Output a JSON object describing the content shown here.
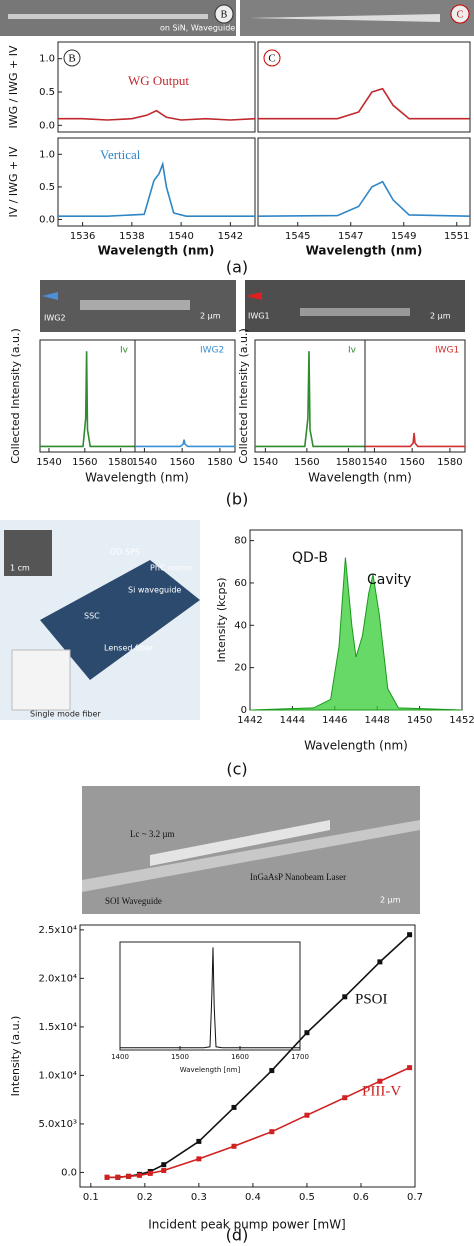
{
  "figure": {
    "panel_labels": [
      "(a)",
      "(b)",
      "(c)",
      "(d)"
    ],
    "sem_a": {
      "caption": "on SiN, Waveguide",
      "labels": [
        "B",
        "C"
      ]
    },
    "sem_b": {
      "arrows": [
        "IWG2",
        "IWG1"
      ],
      "scales": [
        "2 µm",
        "2 µm"
      ]
    },
    "illustration_c": {
      "labels": [
        "QD SPS",
        "PhC mirror",
        "Si waveguide",
        "SSC",
        "Lensed fiber",
        "Single mode fiber",
        "1 cm"
      ]
    },
    "sem_d": {
      "labels": [
        "Lc ~ 3.2 µm",
        "InGaAsP Nanobeam Laser",
        "SOI Waveguide",
        "2 µm"
      ]
    }
  },
  "chart_data": [
    {
      "type": "line",
      "corner_label": "B",
      "annotations": [
        "WG Output"
      ],
      "ylabel": "IWG / IWG + IV",
      "xlim": [
        1535,
        1543
      ],
      "ylim": [
        -0.1,
        1.25
      ],
      "yticks": [
        {
          "value": 0,
          "label": "0.0"
        },
        {
          "value": 0.5,
          "label": "0.5"
        },
        {
          "value": 1,
          "label": "1.0"
        }
      ],
      "x": [
        1535,
        1536,
        1537,
        1538,
        1538.6,
        1539,
        1539.4,
        1540,
        1541,
        1542,
        1543
      ],
      "series": [
        {
          "color": "#c0282d",
          "values": [
            0.1,
            0.1,
            0.08,
            0.1,
            0.15,
            0.22,
            0.12,
            0.08,
            0.1,
            0.08,
            0.1
          ]
        }
      ]
    },
    {
      "type": "line",
      "corner_label": "C",
      "xlim": [
        1543.5,
        1551.5
      ],
      "ylim": [
        -0.1,
        1.25
      ],
      "x": [
        1543.5,
        1545,
        1546.5,
        1547.3,
        1547.8,
        1548.2,
        1548.6,
        1549.2,
        1550,
        1551.5
      ],
      "series": [
        {
          "color": "#c0282d",
          "values": [
            0.1,
            0.1,
            0.1,
            0.2,
            0.5,
            0.55,
            0.3,
            0.1,
            0.1,
            0.1
          ]
        }
      ]
    },
    {
      "type": "line",
      "annotations": [
        "Vertical"
      ],
      "ylabel": "IV / IWG + IV",
      "xlabel": "Wavelength (nm)",
      "xlim": [
        1535,
        1543
      ],
      "ylim": [
        -0.1,
        1.25
      ],
      "xticks": [
        1536,
        1538,
        1540,
        1542
      ],
      "yticks": [
        {
          "value": 0,
          "label": "0.0"
        },
        {
          "value": 0.5,
          "label": "0.5"
        },
        {
          "value": 1,
          "label": "1.0"
        }
      ],
      "x": [
        1535,
        1537,
        1538.5,
        1538.9,
        1539.1,
        1539.25,
        1539.4,
        1539.7,
        1540.2,
        1543
      ],
      "series": [
        {
          "color": "#2f86c6",
          "values": [
            0.05,
            0.05,
            0.08,
            0.6,
            0.7,
            0.85,
            0.5,
            0.1,
            0.05,
            0.05
          ]
        }
      ]
    },
    {
      "type": "line",
      "xlabel": "Wavelength (nm)",
      "xlim": [
        1543.5,
        1551.5
      ],
      "ylim": [
        -0.1,
        1.25
      ],
      "xticks": [
        1545,
        1547,
        1549,
        1551
      ],
      "x": [
        1543.5,
        1546.5,
        1547.3,
        1547.8,
        1548.2,
        1548.6,
        1549.2,
        1551.5
      ],
      "series": [
        {
          "color": "#2f86c6",
          "values": [
            0.05,
            0.06,
            0.2,
            0.5,
            0.58,
            0.3,
            0.07,
            0.05
          ]
        }
      ]
    },
    {
      "type": "line",
      "annotations": [
        "Iv"
      ],
      "ylabel": "Collected Intensity (a.u.)",
      "xlabel": "Wavelength (nm)",
      "xlim": [
        1535,
        1588
      ],
      "ylim": [
        0,
        1
      ],
      "xticks": [
        1540,
        1560,
        1580
      ],
      "x": [
        1535,
        1559,
        1560.5,
        1561,
        1561.5,
        1563,
        1588
      ],
      "series": [
        {
          "color": "#2e8b2e",
          "values": [
            0.05,
            0.05,
            0.3,
            0.9,
            0.2,
            0.05,
            0.05
          ]
        }
      ]
    },
    {
      "type": "line",
      "annotations": [
        "IWG2"
      ],
      "xlim": [
        1535,
        1588
      ],
      "ylim": [
        0,
        1
      ],
      "xticks": [
        1540,
        1560,
        1580
      ],
      "x": [
        1535,
        1559,
        1560.5,
        1561,
        1561.5,
        1563,
        1588
      ],
      "series": [
        {
          "color": "#3a8fd0",
          "values": [
            0.05,
            0.05,
            0.07,
            0.11,
            0.07,
            0.05,
            0.05
          ]
        }
      ]
    },
    {
      "type": "line",
      "annotations": [
        "Iv"
      ],
      "ylabel": "Collected Intensity (a.u.)",
      "xlabel": "Wavelength (nm)",
      "xlim": [
        1535,
        1588
      ],
      "ylim": [
        0,
        1
      ],
      "xticks": [
        1540,
        1560,
        1580
      ],
      "x": [
        1535,
        1559,
        1560.5,
        1561,
        1561.5,
        1563,
        1588
      ],
      "series": [
        {
          "color": "#2e8b2e",
          "values": [
            0.05,
            0.05,
            0.3,
            0.9,
            0.2,
            0.05,
            0.05
          ]
        }
      ]
    },
    {
      "type": "line",
      "annotations": [
        "IWG1"
      ],
      "xlim": [
        1535,
        1588
      ],
      "ylim": [
        0,
        1
      ],
      "xticks": [
        1540,
        1560,
        1580
      ],
      "x": [
        1535,
        1559,
        1560.5,
        1561,
        1561.5,
        1563,
        1588
      ],
      "series": [
        {
          "color": "#d03030",
          "values": [
            0.05,
            0.05,
            0.08,
            0.17,
            0.08,
            0.05,
            0.05
          ]
        }
      ]
    },
    {
      "type": "area",
      "annotations": [
        "QD-B",
        "Cavity"
      ],
      "ylabel": "Intensity (kcps)",
      "xlabel": "Wavelength (nm)",
      "xlim": [
        1442,
        1452
      ],
      "ylim": [
        0,
        85
      ],
      "xticks": [
        1442,
        1444,
        1446,
        1448,
        1450,
        1452
      ],
      "yticks": [
        0,
        20,
        40,
        60,
        80
      ],
      "x": [
        1442,
        1445,
        1445.8,
        1446.2,
        1446.5,
        1446.8,
        1447,
        1447.3,
        1447.6,
        1447.8,
        1448.1,
        1448.5,
        1449,
        1452
      ],
      "series": [
        {
          "color": "#33cc33",
          "values": [
            0,
            1,
            5,
            30,
            72,
            40,
            25,
            35,
            55,
            64,
            45,
            10,
            1,
            0
          ]
        }
      ]
    },
    {
      "type": "line",
      "markers": true,
      "ylabel": "Intensity (a.u.)",
      "xlabel": "Incident peak pump power [mW]",
      "xlim": [
        0.08,
        0.7
      ],
      "ylim": [
        -1500,
        25500
      ],
      "xticks": [
        0.1,
        0.2,
        0.3,
        0.4,
        0.5,
        0.6,
        0.7
      ],
      "yticks": [
        {
          "value": 0,
          "label": "0.0"
        },
        {
          "value": 5000,
          "label": "5.0x10³"
        },
        {
          "value": 10000,
          "label": "1.0x10⁴"
        },
        {
          "value": 15000,
          "label": "1.5x10⁴"
        },
        {
          "value": 20000,
          "label": "2.0x10⁴"
        },
        {
          "value": 25000,
          "label": "2.5x10⁴"
        }
      ],
      "x": [
        0.13,
        0.15,
        0.17,
        0.19,
        0.21,
        0.235,
        0.3,
        0.365,
        0.435,
        0.5,
        0.57,
        0.635,
        0.69
      ],
      "series": [
        {
          "name": "PSOI",
          "color": "#111111",
          "values": [
            -500,
            -500,
            -400,
            -200,
            100,
            800,
            3200,
            6700,
            10500,
            14400,
            18100,
            21700,
            24500
          ]
        },
        {
          "name": "PIII-V",
          "color": "#d02020",
          "values": [
            -500,
            -500,
            -400,
            -300,
            -100,
            200,
            1400,
            2700,
            4200,
            5900,
            7700,
            9400,
            10800
          ]
        }
      ]
    },
    {
      "type": "line",
      "xlabel": "Wavelength [nm]",
      "xlim": [
        1400,
        1700
      ],
      "ylim": [
        0,
        1
      ],
      "xticks": [
        1400,
        1500,
        1600,
        1700
      ],
      "x": [
        1400,
        1540,
        1550,
        1553,
        1555,
        1557,
        1560,
        1570,
        1700
      ],
      "series": [
        {
          "color": "#111111",
          "values": [
            0.02,
            0.02,
            0.03,
            0.5,
            0.95,
            0.4,
            0.03,
            0.02,
            0.02
          ]
        }
      ]
    }
  ]
}
